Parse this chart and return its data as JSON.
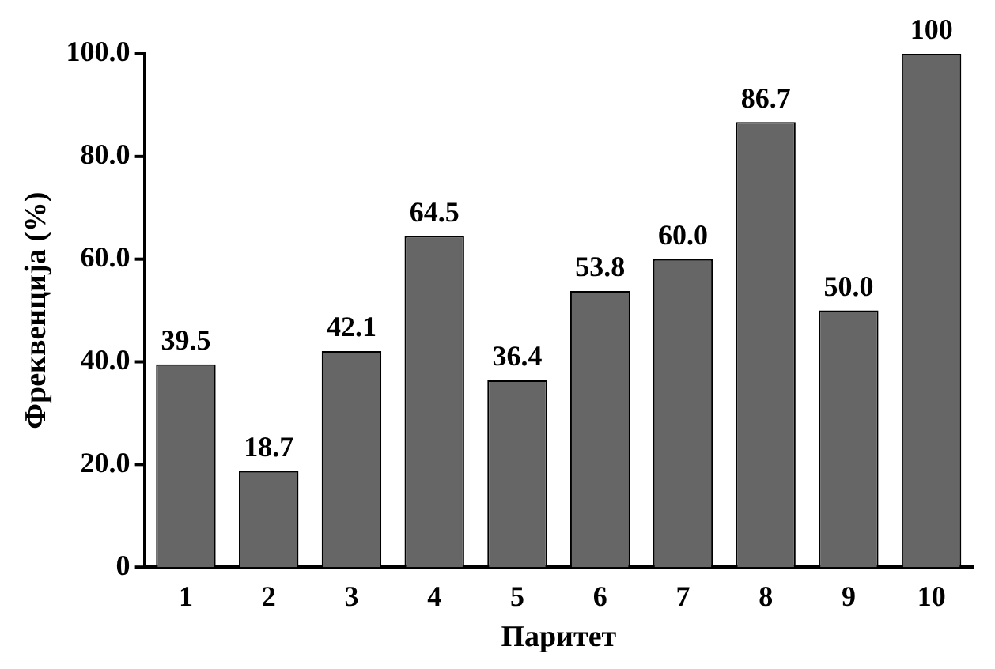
{
  "chart_data": {
    "type": "bar",
    "xlabel": "Паритет",
    "ylabel": "Фреквенција (%)",
    "categories": [
      "1",
      "2",
      "3",
      "4",
      "5",
      "6",
      "7",
      "8",
      "9",
      "10"
    ],
    "values": [
      39.5,
      18.7,
      42.1,
      64.5,
      36.4,
      53.8,
      60.0,
      86.7,
      50.0,
      100
    ],
    "value_labels": [
      "39.5",
      "18.7",
      "42.1",
      "64.5",
      "36.4",
      "53.8",
      "60.0",
      "86.7",
      "50.0",
      "100"
    ],
    "color": "#666666",
    "ylim": [
      0,
      100
    ],
    "yticks": [
      0,
      {
        "value": 20,
        "label": "20.0"
      },
      {
        "value": 40,
        "label": "40.0"
      },
      {
        "value": 60,
        "label": "60.0"
      },
      {
        "value": 80,
        "label": "80.0"
      },
      {
        "value": 100,
        "label": "100.0"
      }
    ],
    "grid": false,
    "legend": false
  }
}
